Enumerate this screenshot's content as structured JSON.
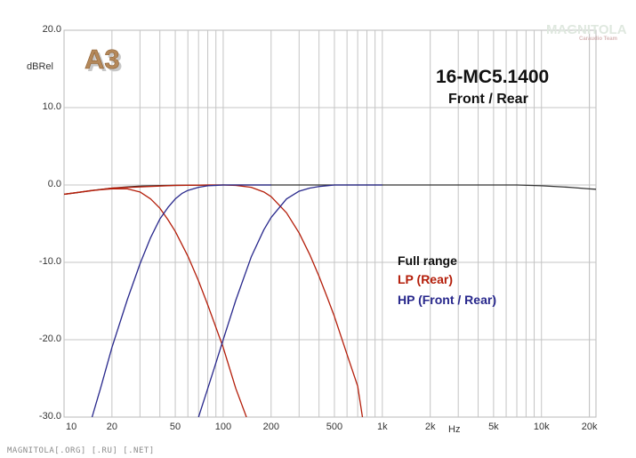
{
  "chart_data": {
    "type": "line",
    "title": "16-MC5.1400",
    "subtitle": "Front / Rear",
    "badge": "A3",
    "xlabel": "Hz",
    "ylabel": "dBRel",
    "x_scale": "log",
    "xlim": [
      10,
      22000
    ],
    "ylim": [
      -30,
      20
    ],
    "grid": true,
    "y_ticks": [
      "20.0",
      "10.0",
      "0.0",
      "-10.0",
      "-20.0",
      "-30.0"
    ],
    "y_tick_values": [
      20,
      10,
      0,
      -10,
      -20,
      -30
    ],
    "x_tick_labels": [
      "10",
      "20",
      "50",
      "100",
      "200",
      "500",
      "1k",
      "2k",
      "5k",
      "10k",
      "20k"
    ],
    "x_tick_values": [
      10,
      20,
      50,
      100,
      200,
      500,
      1000,
      2000,
      5000,
      10000,
      20000
    ],
    "legend": [
      {
        "label": "Full range",
        "color": "#111111"
      },
      {
        "label": "LP (Rear)",
        "color": "#b41e0a"
      },
      {
        "label": "HP (Front / Rear)",
        "color": "#28288c"
      }
    ],
    "series": [
      {
        "name": "Full range",
        "color": "#333333",
        "x": [
          10,
          12,
          15,
          20,
          25,
          30,
          40,
          50,
          70,
          100,
          150,
          200,
          500,
          1000,
          2000,
          5000,
          7000,
          10000,
          15000,
          20000,
          22000
        ],
        "y": [
          -1.2,
          -1.0,
          -0.7,
          -0.4,
          -0.25,
          -0.15,
          -0.08,
          -0.05,
          -0.02,
          0,
          0,
          0,
          0,
          0,
          0,
          0,
          0,
          -0.1,
          -0.3,
          -0.5,
          -0.55
        ]
      },
      {
        "name": "LP (Rear) 1",
        "color": "#b41e0a",
        "x": [
          10,
          15,
          20,
          25,
          30,
          35,
          40,
          45,
          50,
          60,
          70,
          80,
          100,
          120,
          140
        ],
        "y": [
          -1.2,
          -0.7,
          -0.5,
          -0.5,
          -0.9,
          -1.8,
          -3.0,
          -4.5,
          -6.0,
          -9.2,
          -12.4,
          -15.5,
          -21.0,
          -26.3,
          -30
        ]
      },
      {
        "name": "LP (Rear) 2",
        "color": "#b41e0a",
        "x": [
          10,
          20,
          50,
          70,
          80,
          90,
          100,
          120,
          150,
          180,
          200,
          250,
          300,
          350,
          400,
          450,
          500,
          600,
          700,
          750
        ],
        "y": [
          -1.2,
          -0.4,
          -0.05,
          -0.02,
          0,
          0,
          0,
          -0.05,
          -0.3,
          -0.9,
          -1.5,
          -3.6,
          -6.2,
          -9.0,
          -11.8,
          -14.5,
          -17.0,
          -21.9,
          -26.0,
          -30
        ]
      },
      {
        "name": "HP (Front / Rear) 1",
        "color": "#28288c",
        "x": [
          15,
          17,
          20,
          25,
          30,
          35,
          40,
          45,
          50,
          55,
          60,
          70,
          80,
          90,
          100,
          150,
          200
        ],
        "y": [
          -30,
          -26.2,
          -21.0,
          -14.8,
          -10.2,
          -6.8,
          -4.4,
          -2.9,
          -1.8,
          -1.1,
          -0.7,
          -0.3,
          -0.1,
          -0.05,
          0,
          0,
          0
        ]
      },
      {
        "name": "HP (Front / Rear) 2",
        "color": "#28288c",
        "x": [
          70,
          80,
          90,
          100,
          120,
          150,
          180,
          200,
          250,
          300,
          350,
          400,
          450,
          500,
          1000
        ],
        "y": [
          -30,
          -26.3,
          -23.0,
          -20.0,
          -14.9,
          -9.3,
          -5.8,
          -4.2,
          -1.8,
          -0.8,
          -0.4,
          -0.2,
          -0.1,
          0,
          0
        ]
      }
    ]
  },
  "watermark": {
    "brand": "MAGNITOLA",
    "team": "Caraudio Team",
    "footer": "MAGNITOLA[.ORG] [.RU] [.NET]"
  }
}
